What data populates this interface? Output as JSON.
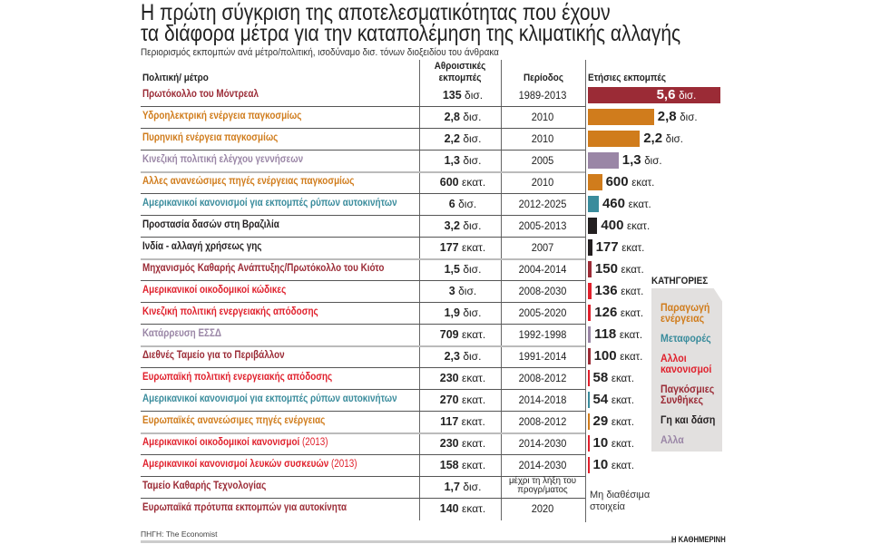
{
  "title_line1": "Η πρώτη σύγκριση της αποτελεσματικότητας που έχουν",
  "title_line2": "τα διάφορα μέτρα για την καταπολέμηση της κλιματικής αλλαγής",
  "subtitle": "Περιορισμός εκπομπών ανά μέτρο/πολιτική, ισοδύναμο δισ. τόνων διοξειδίου του άνθρακα",
  "headers": {
    "policy": "Πολιτική/ μέτρο",
    "cumulative_1": "Αθροιστικές",
    "cumulative_2": "εκπομπές",
    "period": "Περίοδος",
    "annual": "Ετήσιες εκπομπές"
  },
  "categories": {
    "energy": {
      "label": "Παραγωγή ενέργειας",
      "color": "#d07c1c"
    },
    "transport": {
      "label": "Μεταφορές",
      "color": "#3a8c9c"
    },
    "regulation": {
      "label": "Αλλοι κανονισμοί",
      "color": "#e0202c"
    },
    "global": {
      "label": "Παγκόσμιες Συνθήκες",
      "color": "#9b2b36"
    },
    "land": {
      "label": "Γη και δάση",
      "color": "#231f20"
    },
    "other": {
      "label": "Αλλα",
      "color": "#9a86a6"
    }
  },
  "legend_title": "ΚΑΤΗΓΟΡΙΕΣ",
  "not_available": "Μη διαθέσιμα στοιχεία",
  "source": "ΠΗΓΗ: The Economist",
  "brand": "Η ΚΑΘΗΜΕΡΙΝΗ",
  "chart_data": {
    "type": "bar",
    "title": "Η πρώτη σύγκριση της αποτελεσματικότητας που έχουν τα διάφορα μέτρα για την καταπολέμηση της κλιματικής αλλαγής",
    "unit_note": "δισ. τόνων διοξειδίου του άνθρακα",
    "rows": [
      {
        "name": "Πρωτόκολλο του Μόντρεαλ",
        "category": "global",
        "cum_num": "135",
        "cum_unit": "δισ.",
        "period": "1989-2013",
        "annual_num": "5,6",
        "annual_unit": "δισ.",
        "annual_bn": 5.6
      },
      {
        "name": "Υδροηλεκτρική ενέργεια παγκοσμίως",
        "category": "energy",
        "cum_num": "2,8",
        "cum_unit": "δισ.",
        "period": "2010",
        "annual_num": "2,8",
        "annual_unit": "δισ.",
        "annual_bn": 2.8
      },
      {
        "name": "Πυρηνική ενέργεια παγκοσμίως",
        "category": "energy",
        "cum_num": "2,2",
        "cum_unit": "δισ.",
        "period": "2010",
        "annual_num": "2,2",
        "annual_unit": "δισ.",
        "annual_bn": 2.2
      },
      {
        "name": "Κινεζική πολιτική ελέγχου γεννήσεων",
        "category": "other",
        "cum_num": "1,3",
        "cum_unit": "δισ.",
        "period": "2005",
        "annual_num": "1,3",
        "annual_unit": "δισ.",
        "annual_bn": 1.3
      },
      {
        "name": "Αλλες ανανεώσιμες πηγές ενέργειας παγκοσμίως",
        "category": "energy",
        "cum_num": "600",
        "cum_unit": "εκατ.",
        "period": "2010",
        "annual_num": "600",
        "annual_unit": "εκατ.",
        "annual_bn": 0.6
      },
      {
        "name": "Αμερικανικοί κανονισμοί για εκπομπές ρύπων αυτοκινήτων",
        "category": "transport",
        "cum_num": "6",
        "cum_unit": "δισ.",
        "period": "2012-2025",
        "annual_num": "460",
        "annual_unit": "εκατ.",
        "annual_bn": 0.46
      },
      {
        "name": "Προστασία δασών στη Βραζιλία",
        "category": "land",
        "cum_num": "3,2",
        "cum_unit": "δισ.",
        "period": "2005-2013",
        "annual_num": "400",
        "annual_unit": "εκατ.",
        "annual_bn": 0.4
      },
      {
        "name": "Ινδία - αλλαγή χρήσεως γης",
        "category": "land",
        "cum_num": "177",
        "cum_unit": "εκατ.",
        "period": "2007",
        "annual_num": "177",
        "annual_unit": "εκατ.",
        "annual_bn": 0.177
      },
      {
        "name": "Μηχανισμός Καθαρής Ανάπτυξης/Πρωτόκολλο του Κιότο",
        "category": "global",
        "cum_num": "1,5",
        "cum_unit": "δισ.",
        "period": "2004-2014",
        "annual_num": "150",
        "annual_unit": "εκατ.",
        "annual_bn": 0.15
      },
      {
        "name": "Αμερικανικοί οικοδομικοί κώδικες",
        "category": "regulation",
        "cum_num": "3",
        "cum_unit": "δισ.",
        "period": "2008-2030",
        "annual_num": "136",
        "annual_unit": "εκατ.",
        "annual_bn": 0.136
      },
      {
        "name": "Κινεζική πολιτική ενεργειακής απόδοσης",
        "category": "regulation",
        "cum_num": "1,9",
        "cum_unit": "δισ.",
        "period": "2005-2020",
        "annual_num": "126",
        "annual_unit": "εκατ.",
        "annual_bn": 0.126
      },
      {
        "name": "Κατάρρευση ΕΣΣΔ",
        "category": "other",
        "cum_num": "709",
        "cum_unit": "εκατ.",
        "period": "1992-1998",
        "annual_num": "118",
        "annual_unit": "εκατ.",
        "annual_bn": 0.118
      },
      {
        "name": "Διεθνές Ταμείο για το Περιβάλλον",
        "category": "global",
        "cum_num": "2,3",
        "cum_unit": "δισ.",
        "period": "1991-2014",
        "annual_num": "100",
        "annual_unit": "εκατ.",
        "annual_bn": 0.1
      },
      {
        "name": "Ευρωπαϊκή πολιτική ενεργειακής απόδοσης",
        "category": "regulation",
        "cum_num": "230",
        "cum_unit": "εκατ.",
        "period": "2008-2012",
        "annual_num": "58",
        "annual_unit": "εκατ.",
        "annual_bn": 0.058
      },
      {
        "name": "Αμερικανικοί κανονισμοί για εκπομπές ρύπων αυτοκινήτων",
        "category": "transport",
        "cum_num": "270",
        "cum_unit": "εκατ.",
        "period": "2014-2018",
        "annual_num": "54",
        "annual_unit": "εκατ.",
        "annual_bn": 0.054
      },
      {
        "name": "Ευρωπαϊκές ανανεώσιμες πηγές ενέργειας",
        "category": "energy",
        "cum_num": "117",
        "cum_unit": "εκατ.",
        "period": "2008-2012",
        "annual_num": "29",
        "annual_unit": "εκατ.",
        "annual_bn": 0.029
      },
      {
        "name": "Αμερικανικοί οικοδομικοί κανονισμοί",
        "name_ext": "(2013)",
        "category": "regulation",
        "cum_num": "230",
        "cum_unit": "εκατ.",
        "period": "2014-2030",
        "annual_num": "10",
        "annual_unit": "εκατ.",
        "annual_bn": 0.01
      },
      {
        "name": "Αμερικανικοί κανονισμοί λευκών συσκευών",
        "name_ext": "(2013)",
        "category": "regulation",
        "cum_num": "158",
        "cum_unit": "εκατ.",
        "period": "2014-2030",
        "annual_num": "10",
        "annual_unit": "εκατ.",
        "annual_bn": 0.01
      },
      {
        "name": "Ταμείο Καθαρής Τεχνολογίας",
        "category": "global",
        "cum_num": "1,7",
        "cum_unit": "δισ.",
        "period": "μέχρι τη λήξη του προγρ/ματος",
        "annual_bn": null
      },
      {
        "name": "Ευρωπαϊκά πρότυπα εκπομπών για αυτοκίνητα",
        "category": "global",
        "cum_num": "140",
        "cum_unit": "εκατ.",
        "period": "2020",
        "annual_bn": null
      }
    ]
  }
}
